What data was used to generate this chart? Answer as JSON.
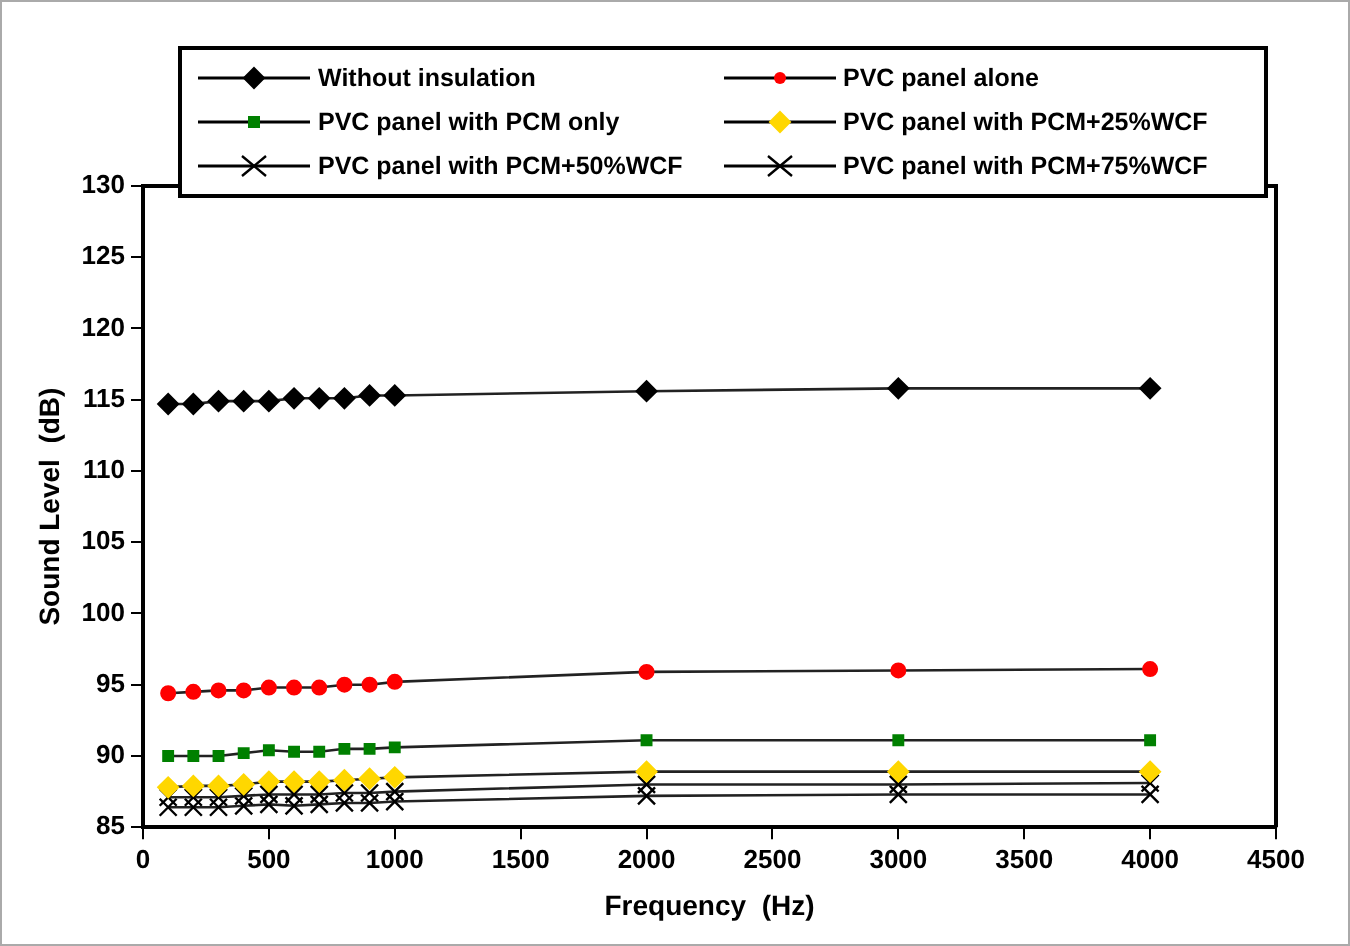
{
  "chart_data": {
    "type": "line",
    "xlabel": "Frequency  (Hz)",
    "ylabel": "Sound Level  (dB)",
    "x": [
      100,
      200,
      300,
      400,
      500,
      600,
      700,
      800,
      900,
      1000,
      2000,
      3000,
      4000
    ],
    "xlim": [
      0,
      4500
    ],
    "xticks": [
      0,
      500,
      1000,
      1500,
      2000,
      2500,
      3000,
      3500,
      4000,
      4500
    ],
    "ylim": [
      85,
      130
    ],
    "yticks": [
      85,
      90,
      95,
      100,
      105,
      110,
      115,
      120,
      125,
      130
    ],
    "grid": false,
    "legend": "top",
    "line_style": "solid",
    "series": [
      {
        "name": "Without insulation",
        "color": "#000000",
        "marker": "diamond",
        "values": [
          114.7,
          114.7,
          114.9,
          114.9,
          114.9,
          115.1,
          115.1,
          115.1,
          115.3,
          115.3,
          115.6,
          115.8,
          115.8
        ]
      },
      {
        "name": "PVC panel alone",
        "color": "#ff0000",
        "marker": "circle",
        "values": [
          94.4,
          94.5,
          94.6,
          94.6,
          94.8,
          94.8,
          94.8,
          95.0,
          95.0,
          95.2,
          95.9,
          96.0,
          96.1
        ]
      },
      {
        "name": "PVC panel with PCM only",
        "color": "#008000",
        "marker": "square",
        "values": [
          90.0,
          90.0,
          90.0,
          90.2,
          90.4,
          90.3,
          90.3,
          90.5,
          90.5,
          90.6,
          91.1,
          91.1,
          91.1
        ]
      },
      {
        "name": "PVC panel with PCM+25%WCF",
        "color": "#ffd700",
        "marker": "diamond",
        "values": [
          87.8,
          87.9,
          87.9,
          88.0,
          88.2,
          88.2,
          88.2,
          88.3,
          88.4,
          88.5,
          88.9,
          88.9,
          88.9
        ]
      },
      {
        "name": "PVC panel with PCM+50%WCF",
        "color": "#000000",
        "marker": "cross",
        "values": [
          87.1,
          87.1,
          87.1,
          87.2,
          87.3,
          87.3,
          87.3,
          87.4,
          87.4,
          87.5,
          88.0,
          88.0,
          88.1
        ]
      },
      {
        "name": "PVC panel with PCM+75%WCF",
        "color": "#000000",
        "marker": "cross",
        "values": [
          86.4,
          86.4,
          86.4,
          86.5,
          86.6,
          86.5,
          86.6,
          86.7,
          86.7,
          86.8,
          87.2,
          87.3,
          87.3
        ]
      }
    ]
  }
}
